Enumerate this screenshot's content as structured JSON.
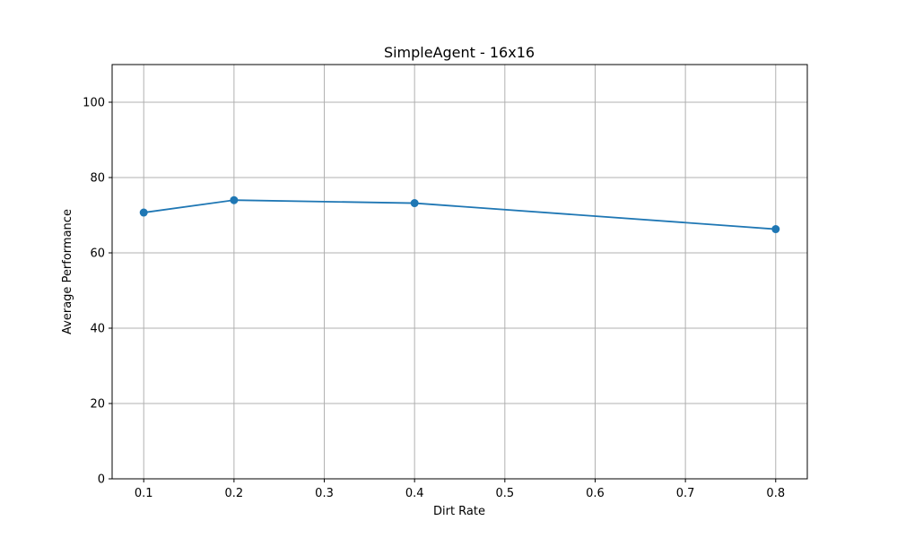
{
  "chart_data": {
    "type": "line",
    "title": "SimpleAgent - 16x16",
    "xlabel": "Dirt Rate",
    "ylabel": "Average Performance",
    "xlim": [
      0.065,
      0.835
    ],
    "ylim": [
      0,
      110
    ],
    "xticks": [
      0.1,
      0.2,
      0.3,
      0.4,
      0.5,
      0.6,
      0.7,
      0.8
    ],
    "xtick_labels": [
      "0.1",
      "0.2",
      "0.3",
      "0.4",
      "0.5",
      "0.6",
      "0.7",
      "0.8"
    ],
    "yticks": [
      0,
      20,
      40,
      60,
      80,
      100
    ],
    "ytick_labels": [
      "0",
      "20",
      "40",
      "60",
      "80",
      "100"
    ],
    "grid": true,
    "series": [
      {
        "color": "#1f77b4",
        "marker": "circle",
        "x": [
          0.1,
          0.2,
          0.4,
          0.8
        ],
        "y": [
          70.7,
          74.0,
          73.2,
          66.3
        ]
      }
    ]
  }
}
